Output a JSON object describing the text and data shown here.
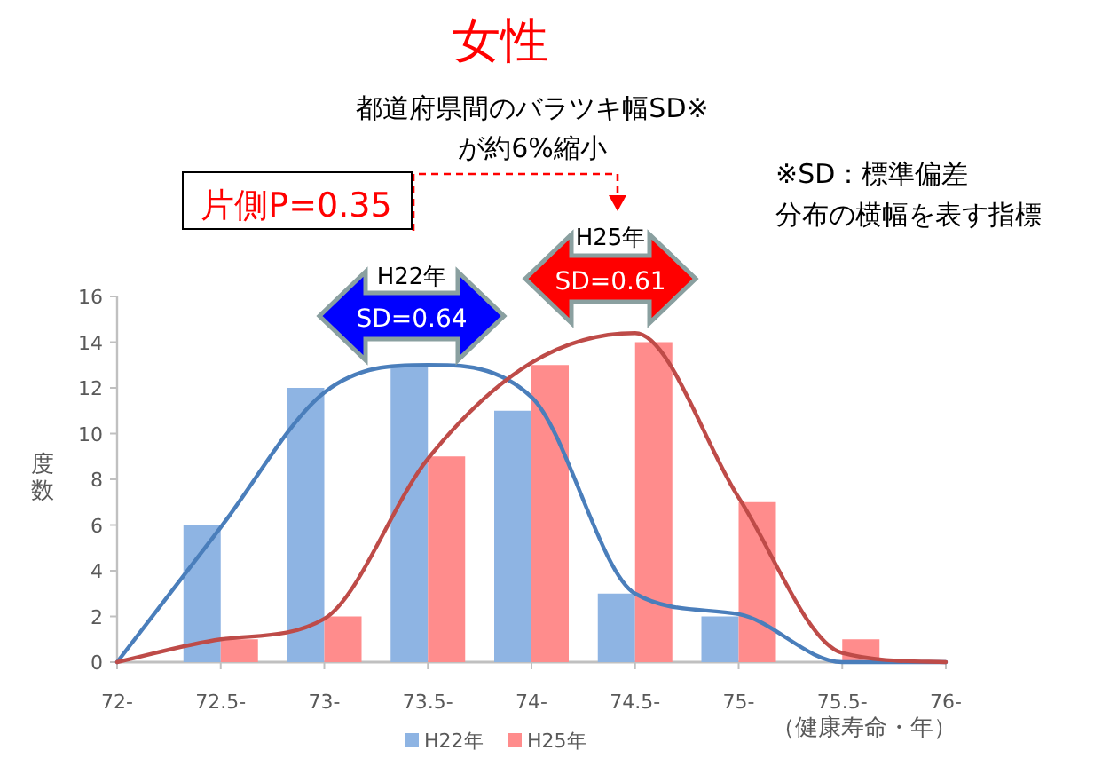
{
  "chart_data": {
    "type": "bar",
    "title": "女性",
    "categories": [
      "72-",
      "72.5-",
      "73-",
      "73.5-",
      "74-",
      "74.5-",
      "75-",
      "75.5-",
      "76-"
    ],
    "series": [
      {
        "name": "H22年",
        "color": "#8eb4e3",
        "values": [
          0,
          6,
          12,
          13,
          11,
          3,
          2,
          0,
          0
        ]
      },
      {
        "name": "H25年",
        "color": "#ff8c8c",
        "values": [
          0,
          1,
          2,
          9,
          13,
          14,
          7,
          1,
          0
        ]
      },
      {
        "type": "line",
        "color": "#4a7ebb",
        "values": [
          0,
          5.9,
          11.8,
          13,
          11.6,
          3,
          2.1,
          0,
          0
        ]
      },
      {
        "type": "line",
        "color": "#be4b48",
        "values": [
          0,
          1,
          1.9,
          8.9,
          13.1,
          14.4,
          7.2,
          0.4,
          0
        ]
      }
    ],
    "xlabel": "（健康寿命・年）",
    "ylabel": "度数",
    "ylim": [
      0,
      16
    ],
    "yticks": [
      0,
      2,
      4,
      6,
      8,
      10,
      12,
      14,
      16
    ],
    "legend": "bottom",
    "annotations": [
      "都道府県間のバラツキ幅SD※\nが約6%縮小",
      "片側P=0.35",
      "※SD：標準偏差",
      "分布の横幅を表す指標",
      "H22年",
      "SD=0.64",
      "H25年",
      "SD=0.61"
    ]
  }
}
